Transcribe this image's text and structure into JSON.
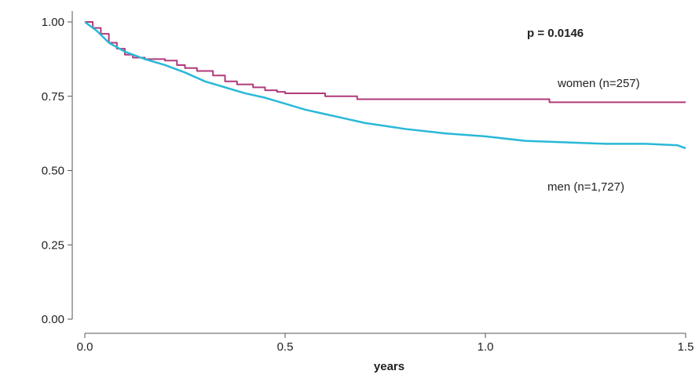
{
  "chart_data": {
    "type": "line",
    "subtype": "kaplan-meier step",
    "title": "",
    "xlabel": "years",
    "ylabel": "",
    "xlim": [
      0,
      1.5
    ],
    "ylim": [
      0,
      1
    ],
    "xticks": [
      0.0,
      0.5,
      1.0,
      1.5
    ],
    "xtick_labels": [
      "0.0",
      "0.5",
      "1.0",
      "1.5"
    ],
    "yticks": [
      0.0,
      0.25,
      0.5,
      0.75,
      1.0
    ],
    "ytick_labels": [
      "0.00",
      "0.25",
      "0.50",
      "0.75",
      "1.00"
    ],
    "grid": false,
    "annotation": "p = 0.0146",
    "series": [
      {
        "name": "women (n=257)",
        "color": "#b03a7a",
        "x": [
          0.0,
          0.02,
          0.04,
          0.06,
          0.08,
          0.1,
          0.12,
          0.15,
          0.2,
          0.23,
          0.25,
          0.28,
          0.32,
          0.35,
          0.38,
          0.42,
          0.45,
          0.48,
          0.5,
          0.6,
          0.68,
          0.8,
          1.0,
          1.15,
          1.16,
          1.3,
          1.5
        ],
        "y": [
          1.0,
          0.98,
          0.96,
          0.93,
          0.91,
          0.89,
          0.88,
          0.875,
          0.87,
          0.855,
          0.845,
          0.835,
          0.82,
          0.8,
          0.79,
          0.78,
          0.77,
          0.765,
          0.76,
          0.75,
          0.74,
          0.74,
          0.74,
          0.74,
          0.73,
          0.73,
          0.73
        ]
      },
      {
        "name": "men (n=1,727)",
        "color": "#29b8d8",
        "x": [
          0.0,
          0.03,
          0.06,
          0.1,
          0.15,
          0.2,
          0.25,
          0.3,
          0.35,
          0.4,
          0.45,
          0.5,
          0.55,
          0.6,
          0.65,
          0.7,
          0.8,
          0.9,
          1.0,
          1.1,
          1.2,
          1.3,
          1.4,
          1.48,
          1.5
        ],
        "y": [
          1.0,
          0.97,
          0.93,
          0.9,
          0.875,
          0.855,
          0.83,
          0.8,
          0.78,
          0.76,
          0.745,
          0.725,
          0.705,
          0.69,
          0.675,
          0.66,
          0.64,
          0.625,
          0.615,
          0.6,
          0.595,
          0.59,
          0.59,
          0.585,
          0.575
        ]
      }
    ]
  }
}
